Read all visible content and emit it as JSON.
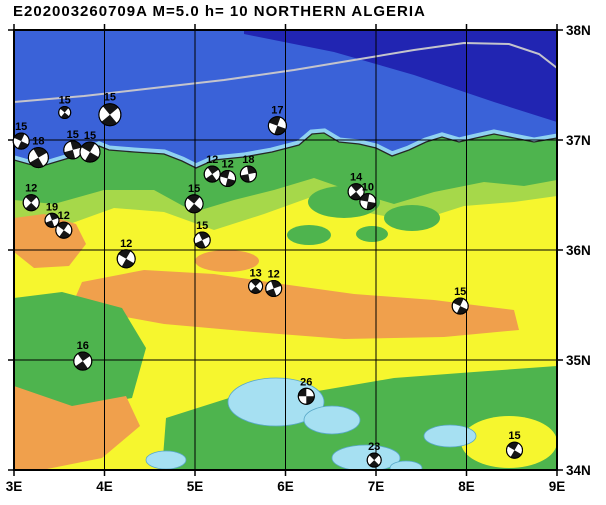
{
  "title": "E202003260709A M=5.0 h= 10 NORTHERN ALGERIA",
  "map": {
    "lon_min": 3,
    "lon_max": 9,
    "lat_min": 34,
    "lat_max": 38,
    "x_tick_labels": [
      "3E",
      "4E",
      "5E",
      "6E",
      "7E",
      "8E",
      "9E"
    ],
    "y_tick_labels": [
      "38N",
      "37N",
      "36N",
      "35N",
      "34N"
    ]
  },
  "colors": {
    "sea_mid": "#3a62d8",
    "sea_deep": "#2125b2",
    "sea_shallow": "#90d2f0",
    "contour_gray": "#c4c4cc",
    "land_yellow": "#f6f62e",
    "land_green": "#4eb44e",
    "land_lightgreen": "#a6d84a",
    "land_orange": "#f0a04c",
    "lake_blue": "#a6e0f2",
    "coastline": "#262626",
    "grid": "#000000"
  },
  "events": [
    {
      "label": "15",
      "lon": 3.08,
      "lat": 36.99,
      "size": 16,
      "rot": 25
    },
    {
      "label": "18",
      "lon": 3.27,
      "lat": 36.84,
      "size": 20,
      "rot": 60
    },
    {
      "label": "15",
      "lon": 3.56,
      "lat": 37.25,
      "size": 12,
      "rot": 40
    },
    {
      "label": "15",
      "lon": 3.65,
      "lat": 36.91,
      "size": 18,
      "rot": 75
    },
    {
      "label": "15",
      "lon": 3.84,
      "lat": 36.89,
      "size": 20,
      "rot": 30
    },
    {
      "label": "15",
      "lon": 4.06,
      "lat": 37.23,
      "size": 22,
      "rot": 50
    },
    {
      "label": "17",
      "lon": 5.91,
      "lat": 37.13,
      "size": 18,
      "rot": 20
    },
    {
      "label": "12",
      "lon": 3.19,
      "lat": 36.43,
      "size": 16,
      "rot": 45
    },
    {
      "label": "19",
      "lon": 3.42,
      "lat": 36.27,
      "size": 14,
      "rot": 70
    },
    {
      "label": "12",
      "lon": 3.55,
      "lat": 36.18,
      "size": 16,
      "rot": 35
    },
    {
      "label": "12",
      "lon": 5.19,
      "lat": 36.69,
      "size": 16,
      "rot": 55
    },
    {
      "label": "12",
      "lon": 5.36,
      "lat": 36.65,
      "size": 16,
      "rot": 15
    },
    {
      "label": "18",
      "lon": 5.59,
      "lat": 36.69,
      "size": 16,
      "rot": 80
    },
    {
      "label": "15",
      "lon": 4.99,
      "lat": 36.42,
      "size": 18,
      "rot": 40
    },
    {
      "label": "15",
      "lon": 5.08,
      "lat": 36.09,
      "size": 16,
      "rot": 65
    },
    {
      "label": "12",
      "lon": 4.24,
      "lat": 35.92,
      "size": 18,
      "rot": 30
    },
    {
      "label": "14",
      "lon": 6.78,
      "lat": 36.53,
      "size": 16,
      "rot": 50
    },
    {
      "label": "10",
      "lon": 6.91,
      "lat": 36.44,
      "size": 16,
      "rot": 10
    },
    {
      "label": "13",
      "lon": 5.67,
      "lat": 35.67,
      "size": 14,
      "rot": 45
    },
    {
      "label": "12",
      "lon": 5.87,
      "lat": 35.65,
      "size": 16,
      "rot": 70
    },
    {
      "label": "15",
      "lon": 7.93,
      "lat": 35.49,
      "size": 16,
      "rot": 25
    },
    {
      "label": "16",
      "lon": 3.76,
      "lat": 34.99,
      "size": 18,
      "rot": 55
    },
    {
      "label": "26",
      "lon": 6.23,
      "lat": 34.67,
      "size": 16,
      "rot": 0
    },
    {
      "label": "23",
      "lon": 6.98,
      "lat": 34.09,
      "size": 14,
      "rot": 45
    },
    {
      "label": "15",
      "lon": 8.53,
      "lat": 34.18,
      "size": 16,
      "rot": 30
    }
  ]
}
